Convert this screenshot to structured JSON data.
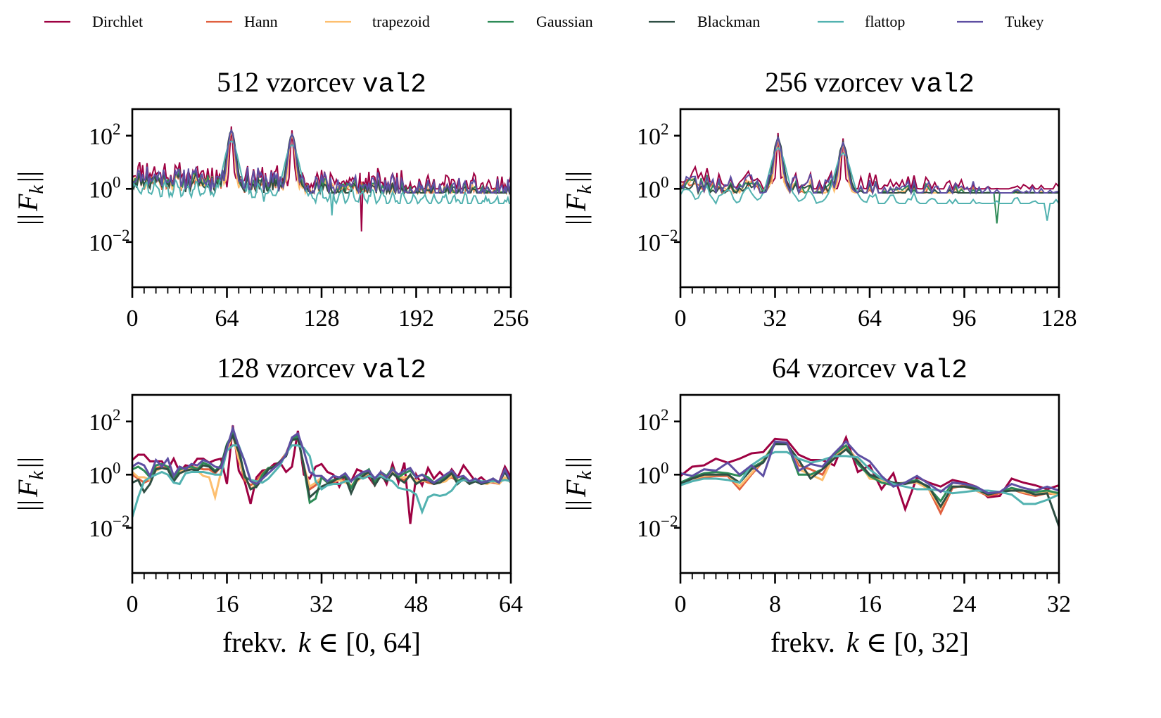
{
  "legend": {
    "entries": [
      {
        "name": "Dirchlet",
        "color": "#9e0142"
      },
      {
        "name": "Hann",
        "color": "#e0603f"
      },
      {
        "name": "trapezoid",
        "color": "#fdbf6f"
      },
      {
        "name": "Gaussian",
        "color": "#2e8b57"
      },
      {
        "name": "Blackman",
        "color": "#2f4f44"
      },
      {
        "name": "flattop",
        "color": "#52b2b0"
      },
      {
        "name": "Tukey",
        "color": "#5e4fa2"
      }
    ]
  },
  "chart_data": [
    {
      "type": "line",
      "title": "512 vzorcev",
      "title_mono": "val2",
      "ylabel": "||F_k||",
      "ylabel_parts": {
        "outer": "||",
        "F": "F",
        "sub": "k"
      },
      "xlabel": "",
      "yscale": "log",
      "ylim_log10": [
        -3.7,
        3.0
      ],
      "yticks": [
        {
          "base": "10",
          "exp": "2",
          "value": 2
        },
        {
          "base": "10",
          "exp": "0",
          "value": 0
        },
        {
          "base": "10",
          "exp": "−2",
          "value": -2
        }
      ],
      "xlim": [
        0,
        256
      ],
      "xticks": [
        "0",
        "64",
        "128",
        "192",
        "256"
      ],
      "xtick_values": [
        0,
        64,
        128,
        192,
        256
      ],
      "minor_step": 8,
      "n_points": 257,
      "peaks": [
        67,
        108
      ],
      "peak_log10": [
        2.35,
        2.2
      ],
      "noise_seed": 11,
      "baseline_log10": 0.35,
      "dips": [
        {
          "k": 155,
          "log10": -1.6,
          "series": "Dirchlet"
        },
        {
          "k": 135,
          "log10": -1.0,
          "series": "flattop"
        }
      ]
    },
    {
      "type": "line",
      "title": "256 vzorcev",
      "title_mono": "val2",
      "ylabel": "||F_k||",
      "ylabel_parts": {
        "outer": "||",
        "F": "F",
        "sub": "k"
      },
      "xlabel": "",
      "yscale": "log",
      "ylim_log10": [
        -3.7,
        3.0
      ],
      "yticks": [
        {
          "base": "10",
          "exp": "2",
          "value": 2
        },
        {
          "base": "10",
          "exp": "0",
          "value": 0
        },
        {
          "base": "10",
          "exp": "−2",
          "value": -2
        }
      ],
      "xlim": [
        0,
        128
      ],
      "xticks": [
        "0",
        "32",
        "64",
        "96",
        "128"
      ],
      "xtick_values": [
        0,
        32,
        64,
        96,
        128
      ],
      "minor_step": 4,
      "n_points": 129,
      "peaks": [
        33,
        55
      ],
      "peak_log10": [
        2.1,
        1.9
      ],
      "noise_seed": 23,
      "baseline_log10": 0.15,
      "dips": [
        {
          "k": 107,
          "log10": -1.3,
          "series": "Gaussian"
        },
        {
          "k": 124,
          "log10": -1.2,
          "series": "flattop"
        }
      ]
    },
    {
      "type": "line",
      "title": "128 vzorcev",
      "title_mono": "val2",
      "ylabel": "||F_k||",
      "ylabel_parts": {
        "outer": "||",
        "F": "F",
        "sub": "k"
      },
      "xlabel": "frekv.",
      "xlabel_math": {
        "var": "k",
        "rel": "∈",
        "range": "[0, 64]"
      },
      "yscale": "log",
      "ylim_log10": [
        -3.7,
        3.0
      ],
      "yticks": [
        {
          "base": "10",
          "exp": "2",
          "value": 2
        },
        {
          "base": "10",
          "exp": "0",
          "value": 0
        },
        {
          "base": "10",
          "exp": "−2",
          "value": -2
        }
      ],
      "xlim": [
        0,
        64
      ],
      "xticks": [
        "0",
        "16",
        "32",
        "48",
        "64"
      ],
      "xtick_values": [
        0,
        16,
        32,
        48,
        64
      ],
      "minor_step": 2,
      "series": [
        {
          "name": "Dirchlet",
          "log10": [
            0.55,
            0.75,
            0.75,
            0.5,
            0.5,
            0.5,
            0.2,
            0.6,
            0.1,
            0.35,
            0.3,
            0.6,
            0.6,
            0.45,
            0.55,
            0.6,
            -0.35,
            1.85,
            0.15,
            -0.25,
            -1.1,
            -0.1,
            0.15,
            0.2,
            0.4,
            0.45,
            0.1,
            0.3,
            1.65,
            -0.0,
            -0.15,
            0.3,
            0.4,
            0.1,
            0.0,
            -0.45,
            0.0,
            -0.25,
            0.2,
            0.1,
            -0.1,
            -0.4,
            0.1,
            -0.35,
            0.4,
            -0.3,
            0.45,
            -1.85,
            -0.0,
            -0.4,
            0.25,
            -0.15,
            0.1,
            -0.15,
            0.2,
            -0.1,
            0.35,
            0.05,
            -0.25,
            -0.1,
            -0.3,
            -0.15,
            -0.3,
            0.3,
            -0.1
          ]
        },
        {
          "name": "Hann",
          "log10": [
            0.0,
            -0.15,
            -0.3,
            -0.2,
            0.25,
            0.3,
            0.2,
            -0.1,
            0.05,
            0.15,
            0.3,
            0.25,
            0.2,
            0.2,
            0.05,
            0.3,
            0.9,
            1.55,
            0.6,
            -0.2,
            -0.4,
            -0.25,
            0.05,
            0.25,
            0.3,
            0.5,
            0.8,
            1.35,
            1.4,
            0.3,
            -0.55,
            -0.4,
            -0.1,
            -0.3,
            -0.3,
            -0.2,
            -0.2,
            -0.45,
            -0.2,
            -0.1,
            0.05,
            -0.4,
            0.0,
            -0.2,
            0.1,
            -0.15,
            -0.2,
            -0.05,
            -0.3,
            -0.2,
            -0.3,
            -0.35,
            -0.3,
            -0.2,
            -0.1,
            -0.25,
            -0.2,
            -0.3,
            -0.2,
            -0.35,
            -0.3,
            -0.3,
            -0.35,
            -0.1,
            -0.25
          ]
        },
        {
          "name": "trapezoid",
          "log10": [
            0.1,
            -0.1,
            -0.1,
            -0.2,
            0.15,
            0.25,
            0.2,
            -0.15,
            0.1,
            0.2,
            0.25,
            0.15,
            -0.05,
            -0.1,
            -0.85,
            0.1,
            0.9,
            1.5,
            0.55,
            -0.05,
            -0.55,
            -0.35,
            0.0,
            0.25,
            0.3,
            0.45,
            0.75,
            1.3,
            1.35,
            0.35,
            -0.45,
            -0.3,
            -0.1,
            -0.3,
            -0.25,
            -0.2,
            -0.3,
            -0.4,
            -0.25,
            -0.05,
            0.05,
            -0.35,
            -0.05,
            -0.15,
            0.1,
            -0.1,
            -0.1,
            -0.05,
            -0.25,
            -0.25,
            -0.2,
            -0.3,
            -0.3,
            -0.25,
            -0.05,
            -0.2,
            -0.2,
            -0.25,
            -0.2,
            -0.3,
            -0.35,
            -0.25,
            -0.35,
            -0.1,
            -0.3
          ]
        },
        {
          "name": "Gaussian",
          "log10": [
            0.2,
            0.3,
            0.15,
            -0.1,
            0.35,
            0.4,
            0.3,
            -0.2,
            0.2,
            0.25,
            0.3,
            0.2,
            0.45,
            0.35,
            0.15,
            0.35,
            1.15,
            1.55,
            1.0,
            -0.1,
            -0.2,
            -0.45,
            0.0,
            0.25,
            0.3,
            0.5,
            0.7,
            1.35,
            1.45,
            0.3,
            -1.05,
            -0.9,
            -0.1,
            -0.3,
            -0.2,
            -0.15,
            -0.05,
            -0.5,
            -0.1,
            0.05,
            0.2,
            -0.3,
            0.1,
            -0.05,
            0.25,
            -0.1,
            0.05,
            0.15,
            -0.1,
            0.0,
            -0.1,
            -0.3,
            -0.2,
            -0.1,
            0.1,
            -0.25,
            -0.1,
            -0.3,
            -0.2,
            -0.3,
            -0.25,
            -0.15,
            -0.3,
            0.15,
            -0.25
          ]
        },
        {
          "name": "Blackman",
          "log10": [
            -0.3,
            -0.2,
            -0.65,
            -0.35,
            0.2,
            0.25,
            0.2,
            -0.25,
            0.05,
            0.15,
            0.2,
            0.15,
            0.35,
            0.3,
            0.1,
            0.3,
            1.1,
            1.45,
            0.85,
            0.0,
            -0.55,
            -0.45,
            -0.15,
            0.2,
            0.3,
            0.5,
            0.7,
            1.3,
            1.35,
            0.35,
            -0.85,
            -0.65,
            -0.45,
            -0.35,
            -0.25,
            -0.1,
            -0.1,
            -0.7,
            -0.2,
            -0.05,
            0.1,
            -0.4,
            -0.05,
            -0.25,
            0.05,
            -0.15,
            -0.3,
            0.0,
            -0.35,
            -0.2,
            -0.2,
            -0.35,
            -0.3,
            -0.15,
            0.05,
            -0.35,
            -0.15,
            -0.35,
            -0.25,
            -0.35,
            -0.3,
            -0.2,
            -0.3,
            0.1,
            -0.3
          ]
        },
        {
          "name": "flattop",
          "log10": [
            -1.6,
            -0.85,
            -0.25,
            -0.1,
            0.0,
            0.1,
            0.0,
            -0.3,
            -0.35,
            0.05,
            0.1,
            0.1,
            0.1,
            0.05,
            0.0,
            0.0,
            0.9,
            1.1,
            1.1,
            0.5,
            -0.2,
            -0.25,
            -0.3,
            -0.15,
            0.1,
            0.35,
            0.8,
            1.1,
            1.1,
            1.0,
            0.7,
            -0.25,
            -0.55,
            -0.4,
            -0.35,
            -0.35,
            -0.25,
            -0.25,
            -0.05,
            -0.15,
            -0.05,
            -0.1,
            -0.05,
            -0.15,
            -0.25,
            -0.5,
            -0.55,
            -0.6,
            -0.75,
            -1.4,
            -0.85,
            -0.75,
            -0.8,
            -0.75,
            -0.6,
            -0.3,
            -0.2,
            -0.25,
            -0.2,
            -0.25,
            -0.25,
            -0.25,
            -0.25,
            -0.2,
            -0.25
          ]
        },
        {
          "name": "Tukey",
          "log10": [
            0.3,
            0.45,
            0.35,
            -0.05,
            0.55,
            0.3,
            0.6,
            -0.05,
            0.3,
            0.2,
            0.4,
            0.35,
            0.55,
            0.45,
            0.3,
            0.25,
            1.0,
            1.75,
            1.05,
            0.5,
            -0.25,
            -0.35,
            -0.15,
            0.05,
            0.25,
            0.45,
            0.75,
            1.4,
            1.55,
            0.9,
            0.1,
            -0.05,
            -0.05,
            -0.25,
            -0.05,
            -0.1,
            0.05,
            -0.25,
            -0.05,
            0.1,
            0.15,
            -0.15,
            0.1,
            -0.1,
            0.2,
            -0.0,
            0.15,
            0.25,
            -0.1,
            0.0,
            -0.2,
            -0.3,
            -0.15,
            0.0,
            0.15,
            -0.1,
            -0.05,
            -0.25,
            -0.15,
            -0.3,
            -0.25,
            -0.15,
            -0.3,
            0.2,
            -0.25
          ]
        }
      ]
    },
    {
      "type": "line",
      "title": "64 vzorcev",
      "title_mono": "val2",
      "ylabel": "||F_k||",
      "ylabel_parts": {
        "outer": "||",
        "F": "F",
        "sub": "k"
      },
      "xlabel": "frekv.",
      "xlabel_math": {
        "var": "k",
        "rel": "∈",
        "range": "[0, 32]"
      },
      "yscale": "log",
      "ylim_log10": [
        -3.7,
        3.0
      ],
      "yticks": [
        {
          "base": "10",
          "exp": "2",
          "value": 2
        },
        {
          "base": "10",
          "exp": "0",
          "value": 0
        },
        {
          "base": "10",
          "exp": "−2",
          "value": -2
        }
      ],
      "xlim": [
        0,
        32
      ],
      "xticks": [
        "0",
        "8",
        "16",
        "24",
        "32"
      ],
      "xtick_values": [
        0,
        8,
        16,
        24,
        32
      ],
      "minor_step": 1,
      "series": [
        {
          "name": "Dirchlet",
          "log10": [
            -0.05,
            0.3,
            0.35,
            0.6,
            0.45,
            0.6,
            0.8,
            0.85,
            1.35,
            1.3,
            0.75,
            0.55,
            0.55,
            0.35,
            1.4,
            0.1,
            0.35,
            -0.55,
            0.05,
            -1.3,
            -0.1,
            -0.3,
            -0.45,
            -0.2,
            -0.3,
            -0.45,
            -0.85,
            -0.8,
            -0.15,
            -0.3,
            -0.4,
            -0.55,
            -0.4
          ]
        },
        {
          "name": "Hann",
          "log10": [
            -0.3,
            -0.15,
            -0.1,
            -0.05,
            -0.05,
            -0.55,
            0.0,
            0.5,
            1.2,
            1.2,
            0.35,
            0.2,
            0.0,
            0.7,
            1.05,
            0.55,
            -0.1,
            -0.2,
            -0.35,
            -0.3,
            -0.3,
            -0.55,
            -1.45,
            -0.5,
            -0.4,
            -0.6,
            -0.8,
            -0.7,
            -0.55,
            -0.7,
            -0.8,
            -0.7,
            -0.75
          ]
        },
        {
          "name": "trapezoid",
          "log10": [
            -0.3,
            -0.15,
            -0.05,
            0.0,
            0.0,
            -0.45,
            0.05,
            0.55,
            1.2,
            1.2,
            0.2,
            0.0,
            -0.2,
            0.75,
            1.0,
            0.55,
            -0.15,
            -0.2,
            -0.35,
            -0.3,
            -0.3,
            -0.55,
            -1.25,
            -0.45,
            -0.45,
            -0.6,
            -0.75,
            -0.65,
            -0.55,
            -0.65,
            -0.75,
            -0.65,
            -0.8
          ]
        },
        {
          "name": "Gaussian",
          "log10": [
            -0.3,
            -0.1,
            0.05,
            0.1,
            0.05,
            -0.05,
            0.25,
            0.5,
            1.2,
            1.2,
            0.0,
            0.0,
            0.2,
            0.75,
            1.1,
            0.4,
            -0.05,
            -0.3,
            -0.4,
            -0.3,
            -0.2,
            -0.5,
            -1.0,
            -0.3,
            -0.35,
            -0.5,
            -0.7,
            -0.65,
            -0.5,
            -0.6,
            -0.65,
            -0.6,
            -0.7
          ]
        },
        {
          "name": "Blackman",
          "log10": [
            -0.35,
            -0.15,
            0.0,
            0.0,
            0.0,
            -0.3,
            0.2,
            0.45,
            1.15,
            1.15,
            0.55,
            -0.15,
            0.2,
            0.6,
            0.95,
            0.5,
            0.0,
            -0.15,
            -0.3,
            -0.35,
            -0.25,
            -0.45,
            -1.2,
            -0.45,
            -0.45,
            -0.55,
            -0.75,
            -0.65,
            -0.6,
            -0.6,
            -0.75,
            -0.7,
            -1.95
          ]
        },
        {
          "name": "flattop",
          "log10": [
            -0.4,
            -0.25,
            -0.15,
            -0.15,
            -0.2,
            -0.3,
            0.35,
            0.65,
            0.85,
            0.85,
            0.6,
            0.45,
            0.55,
            0.7,
            0.7,
            0.65,
            0.2,
            -0.15,
            -0.35,
            -0.45,
            -0.55,
            -0.55,
            -0.6,
            -0.7,
            -0.65,
            -0.6,
            -0.6,
            -0.65,
            -0.75,
            -1.1,
            -1.1,
            -0.95,
            -0.75
          ]
        },
        {
          "name": "Tukey",
          "log10": [
            0.05,
            -0.05,
            0.2,
            0.15,
            0.45,
            0.0,
            0.35,
            -0.05,
            1.25,
            1.2,
            0.15,
            0.4,
            0.3,
            0.8,
            1.25,
            0.75,
            0.5,
            -0.05,
            -0.45,
            -0.3,
            -0.05,
            -0.35,
            -0.65,
            -0.3,
            -0.35,
            -0.45,
            -0.7,
            -0.65,
            -0.35,
            -0.5,
            -0.6,
            -0.45,
            -0.6
          ]
        }
      ]
    }
  ]
}
